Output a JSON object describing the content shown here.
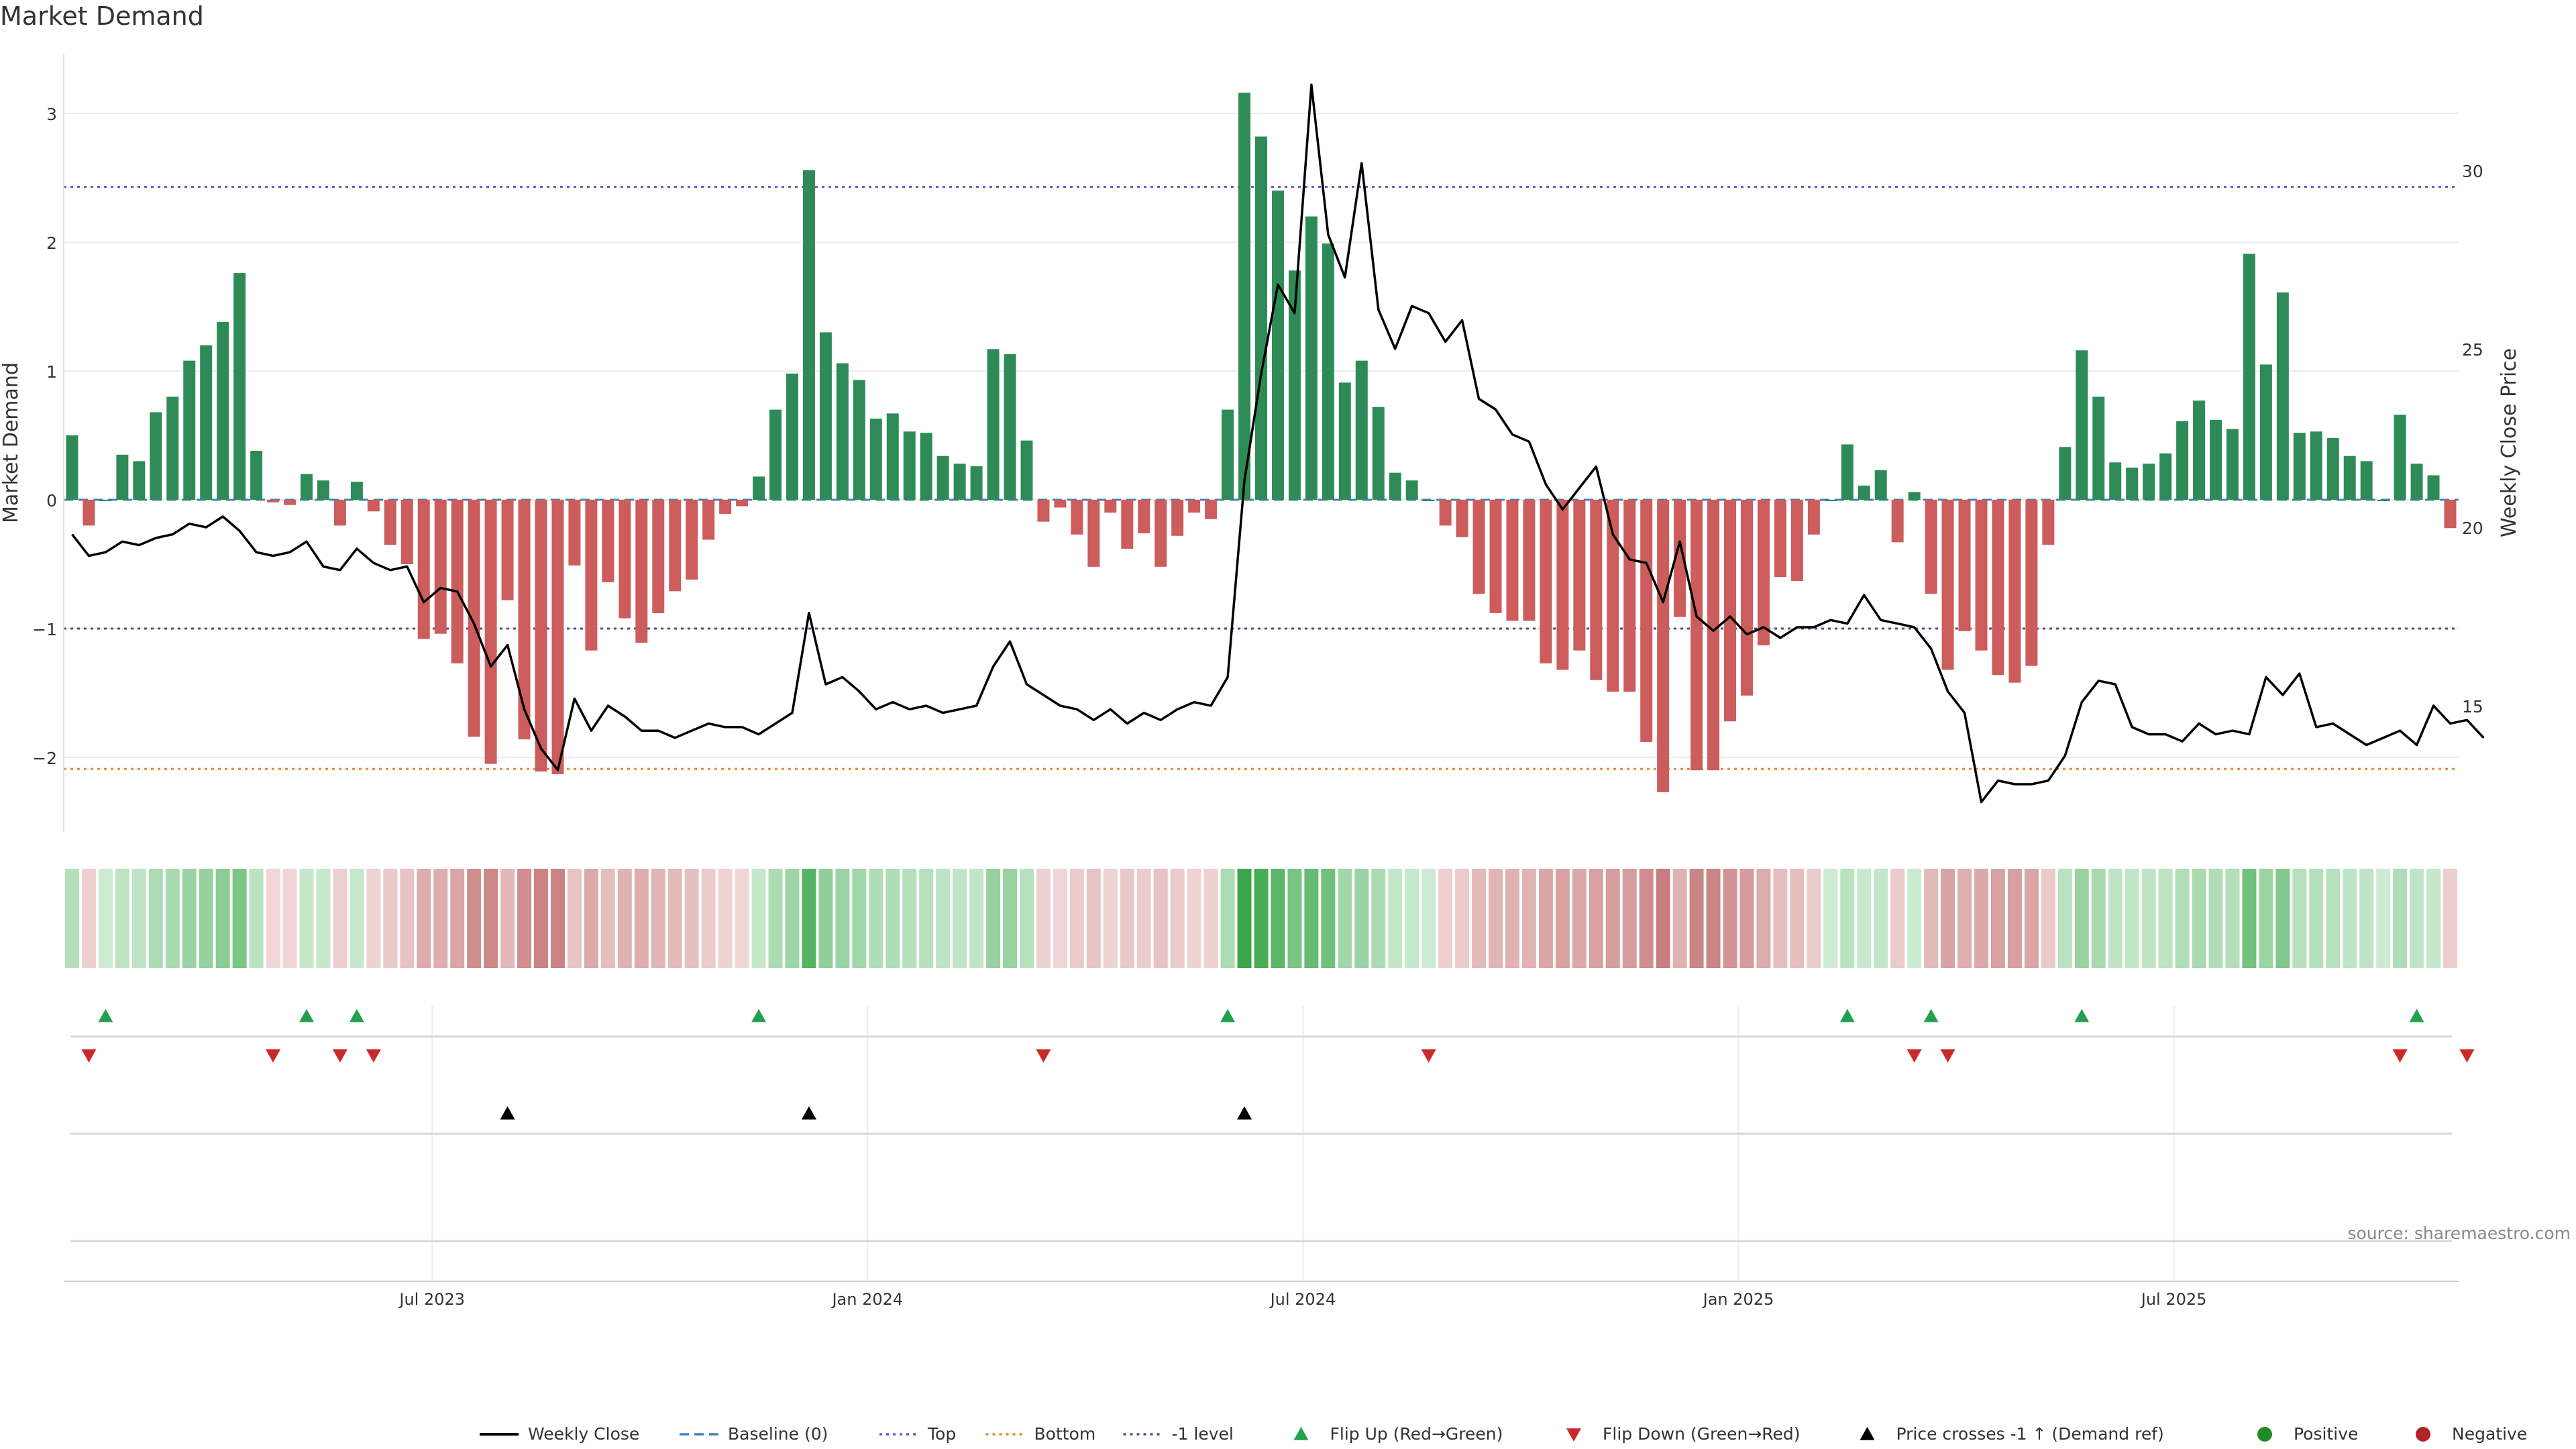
{
  "page": {
    "title": "Market Demand",
    "source": "source: sharemaestro.com"
  },
  "colors": {
    "positive": "#2e8b57",
    "negative": "#cd5c5c",
    "price": "#000000",
    "top": "#6a5acd",
    "bottom": "#e08a3c",
    "minus_one": "#5a4a8a",
    "baseline": "#4682b4",
    "flip_up": "#22a050",
    "flip_down": "#cc2a2a",
    "cross": "#000000"
  },
  "chart_data": {
    "type": "bar",
    "title": "Market Demand",
    "ylabel": "Market Demand",
    "y2label": "Weekly Close Price",
    "ylim": [
      -2.6,
      3.5
    ],
    "y2lim": [
      11.5,
      33.5
    ],
    "yticks": [
      3,
      2,
      1,
      0,
      -1,
      -2
    ],
    "ytick_labels": [
      "3",
      "2",
      "1",
      "0",
      "−1",
      "−2"
    ],
    "y2ticks": [
      30,
      25,
      20,
      15
    ],
    "xaxis_labels": [
      {
        "label": "Jul 2023",
        "week": 22
      },
      {
        "label": "Jan 2024",
        "week": 48
      },
      {
        "label": "Jul 2024",
        "week": 74
      },
      {
        "label": "Jan 2025",
        "week": 100
      },
      {
        "label": "Jul 2025",
        "week": 126
      }
    ],
    "levels": {
      "top": 2.43,
      "bottom": -2.09,
      "minus_one": -1.0,
      "baseline": 0
    },
    "demand": [
      0.5,
      -0.2,
      0,
      0.35,
      0.3,
      0.68,
      0.8,
      1.08,
      1.2,
      1.38,
      1.76,
      0.38,
      -0.02,
      -0.04,
      0.2,
      0.15,
      -0.2,
      0.14,
      -0.09,
      -0.35,
      -0.5,
      -1.08,
      -1.04,
      -1.27,
      -1.84,
      -2.05,
      -0.78,
      -1.86,
      -2.11,
      -2.13,
      -0.51,
      -1.17,
      -0.64,
      -0.92,
      -1.11,
      -0.88,
      -0.71,
      -0.62,
      -0.31,
      -0.11,
      -0.05,
      0.18,
      0.7,
      0.98,
      2.56,
      1.3,
      1.06,
      0.93,
      0.63,
      0.67,
      0.53,
      0.52,
      0.34,
      0.28,
      0.26,
      1.17,
      1.13,
      0.46,
      -0.17,
      -0.06,
      -0.27,
      -0.52,
      -0.1,
      -0.38,
      -0.26,
      -0.52,
      -0.28,
      -0.1,
      -0.15,
      0.7,
      3.16,
      2.82,
      2.4,
      1.78,
      2.2,
      1.99,
      0.91,
      1.08,
      0.72,
      0.21,
      0.15,
      0,
      -0.2,
      -0.29,
      -0.73,
      -0.88,
      -0.94,
      -0.94,
      -1.27,
      -1.32,
      -1.17,
      -1.4,
      -1.49,
      -1.49,
      -1.88,
      -2.27,
      -0.91,
      -2.1,
      -2.1,
      -1.72,
      -1.52,
      -1.13,
      -0.6,
      -0.63,
      -0.27,
      0,
      0.43,
      0.11,
      0.23,
      -0.33,
      0.06,
      -0.73,
      -1.32,
      -1.02,
      -1.17,
      -1.36,
      -1.42,
      -1.29,
      -0.35,
      0.41,
      1.16,
      0.8,
      0.29,
      0.25,
      0.28,
      0.36,
      0.61,
      0.77,
      0.62,
      0.55,
      1.91,
      1.05,
      1.61,
      0.52,
      0.53,
      0.48,
      0.34,
      0.3,
      0,
      0.66,
      0.28,
      0.19,
      -0.22
    ],
    "price": [
      19.8,
      19.2,
      19.3,
      19.6,
      19.5,
      19.7,
      19.8,
      20.1,
      20.0,
      20.3,
      19.9,
      19.3,
      19.2,
      19.3,
      19.6,
      18.9,
      18.8,
      19.4,
      19.0,
      18.8,
      18.9,
      17.9,
      18.3,
      18.2,
      17.3,
      16.1,
      16.7,
      14.9,
      13.8,
      13.2,
      15.2,
      14.3,
      15.0,
      14.7,
      14.3,
      14.3,
      14.1,
      14.3,
      14.5,
      14.4,
      14.4,
      14.2,
      14.5,
      14.8,
      17.6,
      15.6,
      15.8,
      15.4,
      14.9,
      15.1,
      14.9,
      15.0,
      14.8,
      14.9,
      15.0,
      16.1,
      16.8,
      15.6,
      15.3,
      15.0,
      14.9,
      14.6,
      14.9,
      14.5,
      14.8,
      14.6,
      14.9,
      15.1,
      15.0,
      15.8,
      21.3,
      24.3,
      26.8,
      26.0,
      32.4,
      28.2,
      27.0,
      30.2,
      26.1,
      25.0,
      26.2,
      26.0,
      25.2,
      25.8,
      23.6,
      23.3,
      22.6,
      22.4,
      21.2,
      20.5,
      21.1,
      21.7,
      19.8,
      19.1,
      19.0,
      17.9,
      19.6,
      17.5,
      17.1,
      17.5,
      17.0,
      17.2,
      16.9,
      17.2,
      17.2,
      17.4,
      17.3,
      18.1,
      17.4,
      17.3,
      17.2,
      16.6,
      15.4,
      14.8,
      12.3,
      12.9,
      12.8,
      12.8,
      12.9,
      13.6,
      15.1,
      15.7,
      15.6,
      14.4,
      14.2,
      14.2,
      14.0,
      14.5,
      14.2,
      14.3,
      14.2,
      15.8,
      15.3,
      15.9,
      14.4,
      14.5,
      14.2,
      13.9,
      14.1,
      14.3,
      13.9,
      15.0,
      14.5,
      14.6,
      14.1
    ],
    "flip_up_weeks": [
      2,
      14,
      17,
      41,
      69,
      106,
      111,
      120,
      140
    ],
    "flip_down_weeks": [
      1,
      12,
      16,
      18,
      58,
      81,
      110,
      112,
      139,
      143
    ],
    "cross_weeks": [
      26,
      44,
      70
    ],
    "legend_position": "bottom-center",
    "legend": [
      {
        "label": "Weekly Close",
        "marker": "line"
      },
      {
        "label": "Baseline (0)",
        "marker": "dash-baseline"
      },
      {
        "label": "Top",
        "marker": "dot-top"
      },
      {
        "label": "Bottom",
        "marker": "dot-bottom"
      },
      {
        "label": "-1 level",
        "marker": "dot-minus"
      },
      {
        "label": "Flip Up (Red→Green)",
        "marker": "tri-up"
      },
      {
        "label": "Flip Down (Green→Red)",
        "marker": "tri-down"
      },
      {
        "label": "Price crosses -1 ↑ (Demand ref)",
        "marker": "tri-cross"
      },
      {
        "label": "Positive",
        "marker": "dot-pos"
      },
      {
        "label": "Negative",
        "marker": "dot-neg"
      }
    ]
  }
}
